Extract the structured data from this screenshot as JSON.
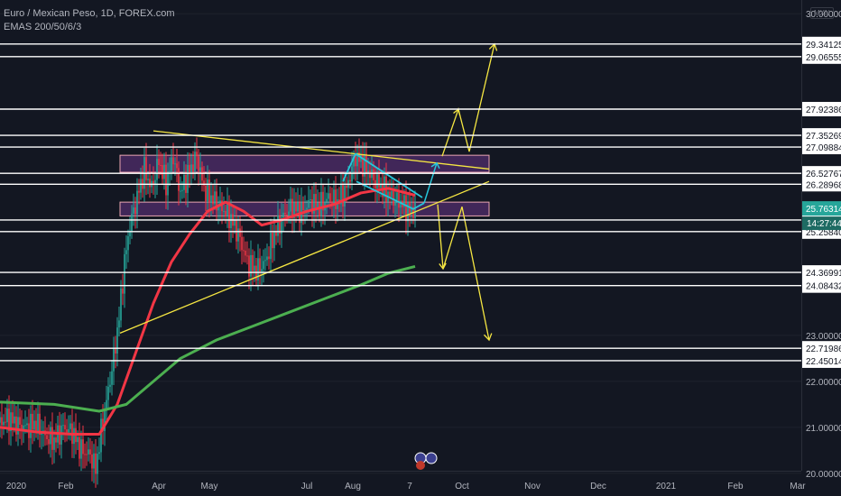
{
  "legend": {
    "symbol": "Euro / Mexican Peso, 1D, FOREX.com",
    "indicator": "EMAS 200/50/6/3"
  },
  "currency": "MXN",
  "axis": {
    "ticks": [
      "30.00000",
      "23.00000",
      "22.00000",
      "21.00000",
      "20.00000"
    ],
    "x_ticks": [
      "2020",
      "Feb",
      "Apr",
      "May",
      "Jul",
      "Aug",
      "7",
      "Oct",
      "Nov",
      "Dec",
      "2021",
      "Feb",
      "Mar"
    ]
  },
  "levels": [
    "29.34125",
    "29.06555",
    "27.92386",
    "27.35269",
    "27.09884",
    "26.52767",
    "26.28968",
    "25.51225",
    "25.25840",
    "24.36991",
    "24.08432",
    "22.71986",
    "22.45014"
  ],
  "price_tag": {
    "value": "25.76314",
    "countdown": "14:27:44"
  },
  "colors": {
    "background": "#131722",
    "ema_red": "#f23645",
    "ema_green": "#4caf50",
    "trendline": "#f5e642",
    "channel": "#26c6da",
    "zone": "#4a2a63",
    "up": "#26a69a",
    "price_tag": "#26a69a"
  },
  "chart_data": {
    "type": "candlestick",
    "symbol": "EUR/MXN",
    "ylim": [
      19.8,
      30.2
    ],
    "x_range": [
      "2020-01",
      "2021-03"
    ],
    "price_path": [
      {
        "t": 0,
        "p": 21.1
      },
      {
        "t": 10,
        "p": 21.2
      },
      {
        "t": 20,
        "p": 21.05
      },
      {
        "t": 30,
        "p": 21.0
      },
      {
        "t": 40,
        "p": 21.1
      },
      {
        "t": 50,
        "p": 20.8
      },
      {
        "t": 60,
        "p": 20.7
      },
      {
        "t": 70,
        "p": 21.0
      },
      {
        "t": 80,
        "p": 20.9
      },
      {
        "t": 90,
        "p": 20.5
      },
      {
        "t": 100,
        "p": 20.4
      },
      {
        "t": 106,
        "p": 20.1
      },
      {
        "t": 112,
        "p": 20.9
      },
      {
        "t": 120,
        "p": 21.8
      },
      {
        "t": 126,
        "p": 22.5
      },
      {
        "t": 132,
        "p": 23.4
      },
      {
        "t": 138,
        "p": 24.6
      },
      {
        "t": 144,
        "p": 25.4
      },
      {
        "t": 152,
        "p": 26.0
      },
      {
        "t": 160,
        "p": 26.6
      },
      {
        "t": 168,
        "p": 26.2
      },
      {
        "t": 176,
        "p": 26.8
      },
      {
        "t": 184,
        "p": 26.3
      },
      {
        "t": 192,
        "p": 26.9
      },
      {
        "t": 200,
        "p": 26.1
      },
      {
        "t": 208,
        "p": 26.5
      },
      {
        "t": 218,
        "p": 26.9
      },
      {
        "t": 226,
        "p": 26.2
      },
      {
        "t": 234,
        "p": 26.0
      },
      {
        "t": 244,
        "p": 25.8
      },
      {
        "t": 254,
        "p": 25.6
      },
      {
        "t": 264,
        "p": 25.2
      },
      {
        "t": 274,
        "p": 24.6
      },
      {
        "t": 284,
        "p": 24.4
      },
      {
        "t": 294,
        "p": 24.6
      },
      {
        "t": 304,
        "p": 25.2
      },
      {
        "t": 314,
        "p": 25.6
      },
      {
        "t": 324,
        "p": 25.8
      },
      {
        "t": 334,
        "p": 25.7
      },
      {
        "t": 344,
        "p": 25.9
      },
      {
        "t": 354,
        "p": 25.8
      },
      {
        "t": 364,
        "p": 26.0
      },
      {
        "t": 374,
        "p": 25.9
      },
      {
        "t": 384,
        "p": 26.2
      },
      {
        "t": 394,
        "p": 26.9
      },
      {
        "t": 404,
        "p": 26.7
      },
      {
        "t": 414,
        "p": 26.4
      },
      {
        "t": 424,
        "p": 26.2
      },
      {
        "t": 434,
        "p": 26.0
      },
      {
        "t": 444,
        "p": 25.9
      },
      {
        "t": 454,
        "p": 25.7
      },
      {
        "t": 460,
        "p": 25.76
      }
    ],
    "series": [
      {
        "name": "EMA red",
        "values": [
          {
            "t": 0,
            "p": 21.0
          },
          {
            "t": 40,
            "p": 20.9
          },
          {
            "t": 80,
            "p": 20.85
          },
          {
            "t": 110,
            "p": 20.85
          },
          {
            "t": 130,
            "p": 21.5
          },
          {
            "t": 150,
            "p": 22.6
          },
          {
            "t": 170,
            "p": 23.7
          },
          {
            "t": 190,
            "p": 24.6
          },
          {
            "t": 210,
            "p": 25.2
          },
          {
            "t": 230,
            "p": 25.7
          },
          {
            "t": 250,
            "p": 25.9
          },
          {
            "t": 270,
            "p": 25.7
          },
          {
            "t": 290,
            "p": 25.4
          },
          {
            "t": 310,
            "p": 25.5
          },
          {
            "t": 340,
            "p": 25.7
          },
          {
            "t": 370,
            "p": 25.85
          },
          {
            "t": 400,
            "p": 26.1
          },
          {
            "t": 430,
            "p": 26.2
          },
          {
            "t": 460,
            "p": 26.05
          }
        ]
      },
      {
        "name": "EMA green",
        "values": [
          {
            "t": 0,
            "p": 21.55
          },
          {
            "t": 60,
            "p": 21.5
          },
          {
            "t": 110,
            "p": 21.35
          },
          {
            "t": 140,
            "p": 21.5
          },
          {
            "t": 170,
            "p": 22.0
          },
          {
            "t": 200,
            "p": 22.5
          },
          {
            "t": 240,
            "p": 22.9
          },
          {
            "t": 280,
            "p": 23.2
          },
          {
            "t": 320,
            "p": 23.5
          },
          {
            "t": 360,
            "p": 23.8
          },
          {
            "t": 400,
            "p": 24.1
          },
          {
            "t": 430,
            "p": 24.35
          },
          {
            "t": 460,
            "p": 24.5
          }
        ]
      }
    ],
    "drawings": {
      "zones": [
        [
          26.55,
          26.92
        ],
        [
          25.6,
          25.9
        ]
      ],
      "trendlines": [
        {
          "from": [
            170,
            27.45
          ],
          "to": [
            542,
            26.62
          ]
        },
        {
          "from": [
            133,
            23.05
          ],
          "to": [
            542,
            26.35
          ]
        }
      ],
      "projections": [
        {
          "points": [
            [
              470,
              25.9
            ],
            [
              484,
              26.75
            ]
          ]
        },
        {
          "points": [
            [
              490,
              26.9
            ],
            [
              508,
              27.92
            ],
            [
              520,
              27.0
            ],
            [
              548,
              29.34
            ]
          ]
        },
        {
          "points": [
            [
              485,
              25.85
            ],
            [
              491,
              24.45
            ],
            [
              512,
              25.8
            ],
            [
              542,
              22.9
            ]
          ]
        }
      ],
      "channel": {
        "upper": [
          [
            380,
            26.35
          ],
          [
            394,
            26.95
          ],
          [
            468,
            26.0
          ]
        ],
        "lower": [
          [
            395,
            26.35
          ],
          [
            458,
            25.75
          ],
          [
            470,
            25.88
          ]
        ]
      }
    }
  }
}
